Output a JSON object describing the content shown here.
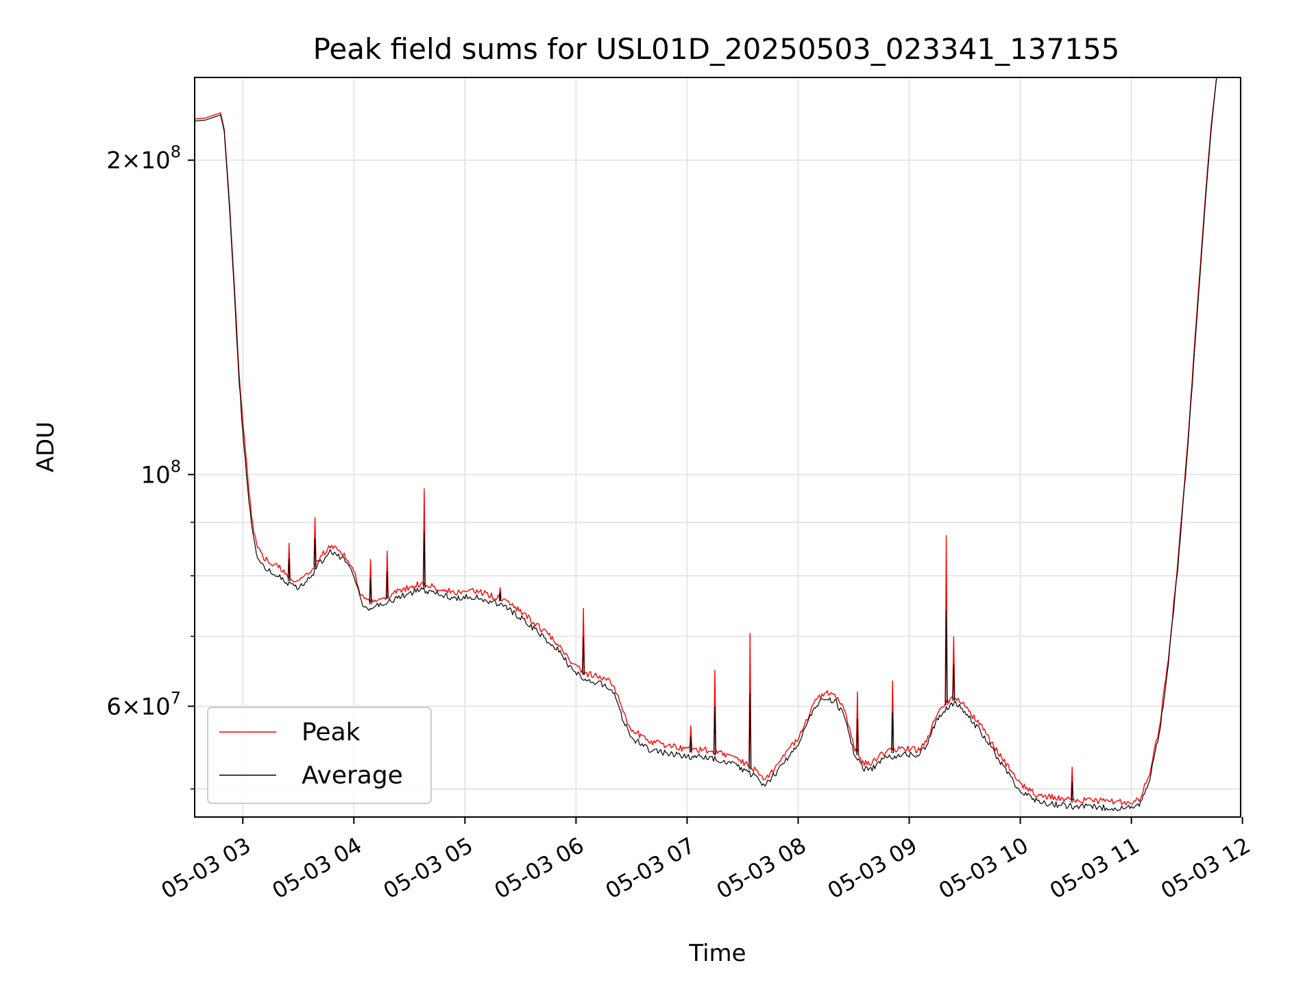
{
  "chart_data": {
    "type": "line",
    "title": "Peak field sums for USL01D_20250503_023341_137155",
    "xlabel": "Time",
    "ylabel": "ADU",
    "x_unit": "datetime (2025-05-03, hours)",
    "xlim": [
      "2025-05-03 02:34",
      "2025-05-03 11:59"
    ],
    "ylim": [
      47000000,
      240000000
    ],
    "y_scale": "log",
    "grid": true,
    "legend_position": "lower-left",
    "x_ticks": [
      {
        "value": "2025-05-03 03:00",
        "label": "05-03 03"
      },
      {
        "value": "2025-05-03 04:00",
        "label": "05-03 04"
      },
      {
        "value": "2025-05-03 05:00",
        "label": "05-03 05"
      },
      {
        "value": "2025-05-03 06:00",
        "label": "05-03 06"
      },
      {
        "value": "2025-05-03 07:00",
        "label": "05-03 07"
      },
      {
        "value": "2025-05-03 08:00",
        "label": "05-03 08"
      },
      {
        "value": "2025-05-03 09:00",
        "label": "05-03 09"
      },
      {
        "value": "2025-05-03 10:00",
        "label": "05-03 10"
      },
      {
        "value": "2025-05-03 11:00",
        "label": "05-03 11"
      },
      {
        "value": "2025-05-03 12:00",
        "label": "05-03 12"
      }
    ],
    "y_major_ticks": [
      {
        "value": 100000000,
        "base": "10",
        "exp": "8",
        "coef": ""
      },
      {
        "value": 60000000,
        "base": "10",
        "exp": "7",
        "coef": "6"
      },
      {
        "value": 200000000,
        "base": "10",
        "exp": "8",
        "coef": "2"
      }
    ],
    "y_minor_gridlines": [
      50000000,
      70000000,
      80000000,
      90000000
    ],
    "series": [
      {
        "name": "Peak",
        "color": "#ff0000",
        "points": [
          [
            "2025-05-03 02:34",
            219000000
          ],
          [
            "2025-05-03 02:40",
            219500000
          ],
          [
            "2025-05-03 02:48",
            222000000
          ],
          [
            "2025-05-03 02:50",
            214000000
          ],
          [
            "2025-05-03 02:53",
            180000000
          ],
          [
            "2025-05-03 02:56",
            145000000
          ],
          [
            "2025-05-03 02:58",
            125000000
          ],
          [
            "2025-05-03 03:00",
            113000000
          ],
          [
            "2025-05-03 03:02",
            103000000
          ],
          [
            "2025-05-03 03:04",
            94000000
          ],
          [
            "2025-05-03 03:06",
            88000000
          ],
          [
            "2025-05-03 03:08",
            85000000
          ],
          [
            "2025-05-03 03:12",
            83000000
          ],
          [
            "2025-05-03 03:16",
            82000000
          ],
          [
            "2025-05-03 03:20",
            81500000
          ],
          [
            "2025-05-03 03:25",
            79500000
          ],
          [
            "2025-05-03 03:30",
            79000000
          ],
          [
            "2025-05-03 03:36",
            80500000
          ],
          [
            "2025-05-03 03:42",
            83500000
          ],
          [
            "2025-05-03 03:48",
            85500000
          ],
          [
            "2025-05-03 03:54",
            84000000
          ],
          [
            "2025-05-03 04:00",
            81000000
          ],
          [
            "2025-05-03 04:04",
            76500000
          ],
          [
            "2025-05-03 04:08",
            75500000
          ],
          [
            "2025-05-03 04:15",
            76000000
          ],
          [
            "2025-05-03 04:25",
            77500000
          ],
          [
            "2025-05-03 04:35",
            78500000
          ],
          [
            "2025-05-03 04:45",
            78000000
          ],
          [
            "2025-05-03 04:55",
            77000000
          ],
          [
            "2025-05-03 05:00",
            77500000
          ],
          [
            "2025-05-03 05:10",
            77000000
          ],
          [
            "2025-05-03 05:20",
            76000000
          ],
          [
            "2025-05-03 05:30",
            74000000
          ],
          [
            "2025-05-03 05:40",
            71500000
          ],
          [
            "2025-05-03 05:50",
            69000000
          ],
          [
            "2025-05-03 05:58",
            66000000
          ],
          [
            "2025-05-03 06:05",
            64500000
          ],
          [
            "2025-05-03 06:15",
            64000000
          ],
          [
            "2025-05-03 06:20",
            63000000
          ],
          [
            "2025-05-03 06:25",
            59500000
          ],
          [
            "2025-05-03 06:30",
            57000000
          ],
          [
            "2025-05-03 06:40",
            55500000
          ],
          [
            "2025-05-03 06:50",
            55000000
          ],
          [
            "2025-05-03 07:00",
            54500000
          ],
          [
            "2025-05-03 07:10",
            54500000
          ],
          [
            "2025-05-03 07:20",
            54000000
          ],
          [
            "2025-05-03 07:30",
            53000000
          ],
          [
            "2025-05-03 07:38",
            52000000
          ],
          [
            "2025-05-03 07:42",
            51000000
          ],
          [
            "2025-05-03 07:48",
            52500000
          ],
          [
            "2025-05-03 07:55",
            54500000
          ],
          [
            "2025-05-03 08:00",
            56000000
          ],
          [
            "2025-05-03 08:05",
            58500000
          ],
          [
            "2025-05-03 08:10",
            61000000
          ],
          [
            "2025-05-03 08:15",
            61800000
          ],
          [
            "2025-05-03 08:20",
            61500000
          ],
          [
            "2025-05-03 08:25",
            59500000
          ],
          [
            "2025-05-03 08:30",
            55000000
          ],
          [
            "2025-05-03 08:35",
            53000000
          ],
          [
            "2025-05-03 08:40",
            53000000
          ],
          [
            "2025-05-03 08:45",
            54000000
          ],
          [
            "2025-05-03 08:55",
            54700000
          ],
          [
            "2025-05-03 09:05",
            54500000
          ],
          [
            "2025-05-03 09:10",
            56000000
          ],
          [
            "2025-05-03 09:15",
            59000000
          ],
          [
            "2025-05-03 09:20",
            60500000
          ],
          [
            "2025-05-03 09:25",
            61200000
          ],
          [
            "2025-05-03 09:30",
            60000000
          ],
          [
            "2025-05-03 09:40",
            57000000
          ],
          [
            "2025-05-03 09:50",
            53500000
          ],
          [
            "2025-05-03 10:00",
            50500000
          ],
          [
            "2025-05-03 10:10",
            49300000
          ],
          [
            "2025-05-03 10:20",
            49000000
          ],
          [
            "2025-05-03 10:30",
            48800000
          ],
          [
            "2025-05-03 10:45",
            48700000
          ],
          [
            "2025-05-03 11:00",
            48500000
          ],
          [
            "2025-05-03 11:05",
            49000000
          ],
          [
            "2025-05-03 11:10",
            52000000
          ],
          [
            "2025-05-03 11:15",
            57000000
          ],
          [
            "2025-05-03 11:20",
            67000000
          ],
          [
            "2025-05-03 11:25",
            82000000
          ],
          [
            "2025-05-03 11:30",
            105000000
          ],
          [
            "2025-05-03 11:35",
            140000000
          ],
          [
            "2025-05-03 11:40",
            185000000
          ],
          [
            "2025-05-03 11:43",
            215000000
          ],
          [
            "2025-05-03 11:46",
            240000000
          ]
        ]
      },
      {
        "name": "Average",
        "color": "#000000",
        "points": [
          [
            "2025-05-03 02:34",
            218000000
          ],
          [
            "2025-05-03 02:40",
            218500000
          ],
          [
            "2025-05-03 02:48",
            221000000
          ],
          [
            "2025-05-03 02:50",
            213000000
          ],
          [
            "2025-05-03 02:53",
            178000000
          ],
          [
            "2025-05-03 02:56",
            143000000
          ],
          [
            "2025-05-03 02:58",
            123000000
          ],
          [
            "2025-05-03 03:00",
            110000000
          ],
          [
            "2025-05-03 03:02",
            100000000
          ],
          [
            "2025-05-03 03:04",
            92000000
          ],
          [
            "2025-05-03 03:06",
            86500000
          ],
          [
            "2025-05-03 03:08",
            83500000
          ],
          [
            "2025-05-03 03:12",
            81500000
          ],
          [
            "2025-05-03 03:16",
            80500000
          ],
          [
            "2025-05-03 03:20",
            80000000
          ],
          [
            "2025-05-03 03:25",
            78500000
          ],
          [
            "2025-05-03 03:30",
            78000000
          ],
          [
            "2025-05-03 03:36",
            79500000
          ],
          [
            "2025-05-03 03:42",
            82500000
          ],
          [
            "2025-05-03 03:48",
            84500000
          ],
          [
            "2025-05-03 03:54",
            83000000
          ],
          [
            "2025-05-03 04:00",
            80000000
          ],
          [
            "2025-05-03 04:04",
            75500000
          ],
          [
            "2025-05-03 04:08",
            74500000
          ],
          [
            "2025-05-03 04:15",
            75000000
          ],
          [
            "2025-05-03 04:25",
            76500000
          ],
          [
            "2025-05-03 04:35",
            77500000
          ],
          [
            "2025-05-03 04:45",
            77000000
          ],
          [
            "2025-05-03 04:55",
            76000000
          ],
          [
            "2025-05-03 05:00",
            76500000
          ],
          [
            "2025-05-03 05:10",
            76000000
          ],
          [
            "2025-05-03 05:20",
            75000000
          ],
          [
            "2025-05-03 05:30",
            73000000
          ],
          [
            "2025-05-03 05:40",
            70500000
          ],
          [
            "2025-05-03 05:50",
            68000000
          ],
          [
            "2025-05-03 05:58",
            65000000
          ],
          [
            "2025-05-03 06:05",
            63500000
          ],
          [
            "2025-05-03 06:15",
            63000000
          ],
          [
            "2025-05-03 06:20",
            62000000
          ],
          [
            "2025-05-03 06:25",
            58500000
          ],
          [
            "2025-05-03 06:30",
            56000000
          ],
          [
            "2025-05-03 06:40",
            54500000
          ],
          [
            "2025-05-03 06:50",
            54000000
          ],
          [
            "2025-05-03 07:00",
            53700000
          ],
          [
            "2025-05-03 07:10",
            53700000
          ],
          [
            "2025-05-03 07:20",
            53200000
          ],
          [
            "2025-05-03 07:30",
            52200000
          ],
          [
            "2025-05-03 07:38",
            51200000
          ],
          [
            "2025-05-03 07:42",
            50300000
          ],
          [
            "2025-05-03 07:48",
            51800000
          ],
          [
            "2025-05-03 07:55",
            53800000
          ],
          [
            "2025-05-03 08:00",
            55300000
          ],
          [
            "2025-05-03 08:05",
            57800000
          ],
          [
            "2025-05-03 08:10",
            60300000
          ],
          [
            "2025-05-03 08:15",
            61000000
          ],
          [
            "2025-05-03 08:20",
            60700000
          ],
          [
            "2025-05-03 08:25",
            58700000
          ],
          [
            "2025-05-03 08:30",
            54300000
          ],
          [
            "2025-05-03 08:35",
            52300000
          ],
          [
            "2025-05-03 08:40",
            52300000
          ],
          [
            "2025-05-03 08:45",
            53300000
          ],
          [
            "2025-05-03 08:55",
            54000000
          ],
          [
            "2025-05-03 09:05",
            53800000
          ],
          [
            "2025-05-03 09:10",
            55300000
          ],
          [
            "2025-05-03 09:15",
            58300000
          ],
          [
            "2025-05-03 09:20",
            59800000
          ],
          [
            "2025-05-03 09:25",
            60400000
          ],
          [
            "2025-05-03 09:30",
            59200000
          ],
          [
            "2025-05-03 09:40",
            56300000
          ],
          [
            "2025-05-03 09:50",
            52800000
          ],
          [
            "2025-05-03 10:00",
            49800000
          ],
          [
            "2025-05-03 10:10",
            48600000
          ],
          [
            "2025-05-03 10:20",
            48300000
          ],
          [
            "2025-05-03 10:30",
            48100000
          ],
          [
            "2025-05-03 10:45",
            48000000
          ],
          [
            "2025-05-03 11:00",
            47900000
          ],
          [
            "2025-05-03 11:05",
            48400000
          ],
          [
            "2025-05-03 11:10",
            51300000
          ],
          [
            "2025-05-03 11:15",
            56300000
          ],
          [
            "2025-05-03 11:20",
            66000000
          ],
          [
            "2025-05-03 11:25",
            81000000
          ],
          [
            "2025-05-03 11:30",
            104000000
          ],
          [
            "2025-05-03 11:35",
            138000000
          ],
          [
            "2025-05-03 11:40",
            183000000
          ],
          [
            "2025-05-03 11:43",
            213000000
          ],
          [
            "2025-05-03 11:46",
            240000000
          ]
        ]
      }
    ],
    "spikes": [
      [
        "2025-05-03 03:25",
        86000000
      ],
      [
        "2025-05-03 03:39",
        91000000
      ],
      [
        "2025-05-03 04:09",
        83000000
      ],
      [
        "2025-05-03 04:18",
        84500000
      ],
      [
        "2025-05-03 04:38",
        97000000
      ],
      [
        "2025-05-03 05:19",
        78000000
      ],
      [
        "2025-05-03 06:04",
        74500000
      ],
      [
        "2025-05-03 07:02",
        57500000
      ],
      [
        "2025-05-03 07:15",
        65000000
      ],
      [
        "2025-05-03 07:34",
        70500000
      ],
      [
        "2025-05-03 08:32",
        62000000
      ],
      [
        "2025-05-03 08:51",
        63500000
      ],
      [
        "2025-05-03 09:20",
        87500000
      ],
      [
        "2025-05-03 09:24",
        70000000
      ],
      [
        "2025-05-03 10:28",
        52500000
      ]
    ]
  }
}
